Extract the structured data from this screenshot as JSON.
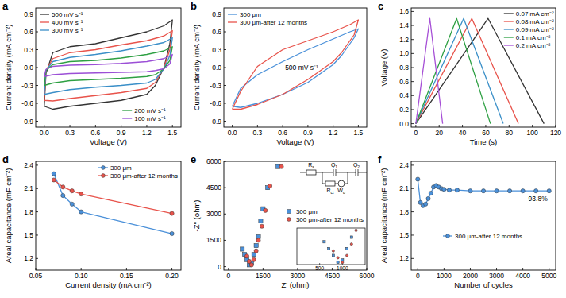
{
  "chart_data": [
    {
      "type": "line",
      "panel": "a",
      "xlabel": "Voltage (V)",
      "ylabel": "Current density (mA cm⁻²)",
      "xlim": [
        -0.1,
        1.6
      ],
      "ylim": [
        -1.0,
        1.0
      ],
      "xticks": [
        {
          "value": 0,
          "label": "0.0"
        },
        0.3,
        0.6,
        0.9,
        1.2,
        1.5
      ],
      "yticks": [
        -0.9,
        -0.6,
        -0.3,
        {
          "value": 0,
          "label": "0.0"
        },
        0.3,
        0.6,
        0.9
      ],
      "legend": "upper left",
      "series": [
        {
          "name": "500 mV s⁻¹",
          "color": "#333333",
          "x": [
            0,
            0.02,
            0.1,
            0.3,
            0.6,
            0.9,
            1.2,
            1.4,
            1.5,
            1.47,
            1.4,
            1.3,
            1.2,
            0.9,
            0.6,
            0.3,
            0.1,
            0
          ],
          "values": [
            -0.65,
            -0.1,
            0.25,
            0.35,
            0.4,
            0.5,
            0.6,
            0.7,
            0.8,
            0.4,
            0.0,
            -0.3,
            -0.45,
            -0.55,
            -0.6,
            -0.65,
            -0.7,
            -0.65
          ]
        },
        {
          "name": "400 mV s⁻¹",
          "color": "#e8534b",
          "x": [
            0,
            0.02,
            0.1,
            0.3,
            0.6,
            0.9,
            1.2,
            1.4,
            1.5,
            1.47,
            1.4,
            1.3,
            1.2,
            0.9,
            0.6,
            0.3,
            0.1,
            0
          ],
          "values": [
            -0.55,
            -0.05,
            0.15,
            0.25,
            0.3,
            0.38,
            0.45,
            0.53,
            0.62,
            0.3,
            0.0,
            -0.25,
            -0.35,
            -0.42,
            -0.47,
            -0.52,
            -0.56,
            -0.55
          ]
        },
        {
          "name": "300 mV s⁻¹",
          "color": "#3a8fc8",
          "x": [
            0,
            0.02,
            0.1,
            0.3,
            0.6,
            0.9,
            1.2,
            1.4,
            1.5,
            1.47,
            1.4,
            1.3,
            1.2,
            0.9,
            0.6,
            0.3,
            0.1,
            0
          ],
          "values": [
            -0.45,
            -0.05,
            0.1,
            0.17,
            0.22,
            0.28,
            0.36,
            0.42,
            0.5,
            0.2,
            -0.02,
            -0.2,
            -0.26,
            -0.3,
            -0.33,
            -0.37,
            -0.42,
            -0.45
          ]
        },
        {
          "name": "200 mV s⁻¹",
          "color": "#2ea043",
          "x": [
            0,
            0.02,
            0.1,
            0.3,
            0.6,
            0.9,
            1.2,
            1.4,
            1.5,
            1.47,
            1.4,
            1.3,
            1.2,
            0.9,
            0.6,
            0.3,
            0.1,
            0
          ],
          "values": [
            -0.3,
            -0.05,
            0.05,
            0.1,
            0.12,
            0.16,
            0.22,
            0.28,
            0.35,
            0.12,
            -0.02,
            -0.12,
            -0.15,
            -0.18,
            -0.2,
            -0.22,
            -0.26,
            -0.3
          ]
        },
        {
          "name": "100 mV s⁻¹",
          "color": "#9b4fd6",
          "x": [
            0,
            0.02,
            0.1,
            0.3,
            0.6,
            0.9,
            1.2,
            1.4,
            1.5,
            1.47,
            1.4,
            1.3,
            1.2,
            0.9,
            0.6,
            0.3,
            0.1,
            0
          ],
          "values": [
            -0.15,
            -0.03,
            0.02,
            0.04,
            0.05,
            0.07,
            0.1,
            0.15,
            0.22,
            0.06,
            -0.02,
            -0.05,
            -0.07,
            -0.08,
            -0.09,
            -0.1,
            -0.12,
            -0.15
          ]
        }
      ]
    },
    {
      "type": "line",
      "panel": "b",
      "xlabel": "Voltage (V)",
      "ylabel": "Current density (mA cm⁻²)",
      "xlim": [
        -0.1,
        1.6
      ],
      "ylim": [
        -1.0,
        1.0
      ],
      "xticks": [
        {
          "value": 0,
          "label": "0.0"
        },
        0.3,
        0.6,
        0.9,
        1.2,
        1.5
      ],
      "yticks": [
        -0.9,
        -0.6,
        -0.3,
        {
          "value": 0,
          "label": "0.0"
        },
        0.3,
        0.6,
        0.9
      ],
      "legend": "upper left",
      "annotation": "500 mV s⁻¹",
      "series": [
        {
          "name": "300 μm",
          "color": "#4a90d9",
          "x": [
            0,
            0.1,
            0.3,
            0.6,
            0.9,
            1.2,
            1.4,
            1.5,
            1.45,
            1.3,
            1.2,
            0.9,
            0.6,
            0.3,
            0.1,
            0
          ],
          "values": [
            -0.65,
            -0.35,
            -0.12,
            0.1,
            0.3,
            0.48,
            0.6,
            0.65,
            0.5,
            0.2,
            0.05,
            -0.25,
            -0.45,
            -0.6,
            -0.67,
            -0.65
          ]
        },
        {
          "name": "300 μm-after 12 months",
          "color": "#e8534b",
          "x": [
            0,
            0.1,
            0.3,
            0.6,
            0.9,
            1.2,
            1.4,
            1.5,
            1.45,
            1.3,
            1.2,
            0.9,
            0.6,
            0.3,
            0.1,
            0
          ],
          "values": [
            -0.7,
            -0.4,
            0.02,
            0.3,
            0.45,
            0.6,
            0.72,
            0.8,
            0.55,
            0.25,
            0.1,
            -0.2,
            -0.45,
            -0.62,
            -0.7,
            -0.7
          ]
        }
      ]
    },
    {
      "type": "line",
      "panel": "c",
      "xlabel": "Time (s)",
      "ylabel": "Voltage (V)",
      "xlim": [
        -4,
        120
      ],
      "ylim": [
        -0.05,
        1.65
      ],
      "xticks": [
        0,
        20,
        40,
        60,
        80,
        100,
        120
      ],
      "yticks": [
        {
          "value": 0,
          "label": "0.0"
        },
        0.2,
        0.4,
        0.6,
        0.8,
        {
          "value": 1,
          "label": "1.0"
        },
        1.2,
        1.4,
        1.6
      ],
      "legend": "upper right",
      "series": [
        {
          "name": "0.07 mA cm⁻²",
          "color": "#333333",
          "x": [
            0,
            62,
            110
          ],
          "values": [
            0,
            1.5,
            0
          ]
        },
        {
          "name": "0.08 mA cm⁻²",
          "color": "#e8534b",
          "x": [
            0,
            48,
            88
          ],
          "values": [
            0,
            1.5,
            0
          ]
        },
        {
          "name": "0.09 mA cm⁻²",
          "color": "#3a8fc8",
          "x": [
            0,
            41,
            75
          ],
          "values": [
            0,
            1.5,
            0
          ]
        },
        {
          "name": "0.1 mA cm⁻²",
          "color": "#2ea043",
          "x": [
            0,
            35,
            64
          ],
          "values": [
            0,
            1.5,
            0
          ]
        },
        {
          "name": "0.2 mA cm⁻²",
          "color": "#a64fd6",
          "x": [
            0,
            12,
            23
          ],
          "values": [
            0,
            1.5,
            0
          ]
        }
      ]
    },
    {
      "type": "line",
      "panel": "d",
      "xlabel": "Current density (mA cm⁻²)",
      "ylabel": "Areal capacitance (mF cm⁻²)",
      "xlim": [
        0.05,
        0.21
      ],
      "ylim": [
        1.05,
        2.45
      ],
      "xticks": [
        0.05,
        {
          "value": 0.1,
          "label": "0.10"
        },
        0.15,
        {
          "value": 0.2,
          "label": "0.20"
        }
      ],
      "yticks": [
        1.2,
        1.5,
        1.8,
        2.1,
        2.4
      ],
      "legend": "upper right",
      "series": [
        {
          "name": "300 μm",
          "color": "#4a90d9",
          "marker": "circle",
          "x": [
            0.07,
            0.08,
            0.09,
            0.1,
            0.2
          ],
          "values": [
            2.29,
            2.01,
            1.9,
            1.8,
            1.52
          ]
        },
        {
          "name": "300 μm-after 12 months",
          "color": "#e8534b",
          "marker": "circle",
          "x": [
            0.07,
            0.08,
            0.09,
            0.1,
            0.2
          ],
          "values": [
            2.21,
            2.12,
            2.07,
            2.03,
            1.78
          ]
        }
      ]
    },
    {
      "type": "scatter",
      "panel": "e",
      "xlabel": "Z' (ohm)",
      "ylabel": "-Z'' (ohm)",
      "xlim": [
        -200,
        6000
      ],
      "ylim": [
        -200,
        6000
      ],
      "xticks": [
        0,
        1500,
        3000,
        4500,
        6000
      ],
      "yticks": [
        0,
        1500,
        3000,
        4500,
        6000
      ],
      "legend": "center right",
      "circuit": [
        "Rs",
        "Q1",
        "Q2",
        "Rct",
        "Wo"
      ],
      "inset": {
        "xlim": [
          0,
          1500
        ],
        "ylim": [
          0,
          1600
        ],
        "xticks": [
          500,
          1000
        ]
      },
      "series": [
        {
          "name": "300 μm",
          "color": "#4a90d9",
          "marker": "square",
          "x": [
            600,
            700,
            800,
            900,
            1000,
            1100,
            1200,
            1300,
            1400,
            1500,
            1700,
            2150
          ],
          "values": [
            1000,
            700,
            400,
            100,
            200,
            700,
            1200,
            1700,
            2600,
            3300,
            4500,
            5700
          ]
        },
        {
          "name": "300 μm-after 12 months",
          "color": "#e8534b",
          "marker": "circle",
          "x": [
            800,
            900,
            1000,
            1100,
            1200,
            1300,
            1450,
            1600,
            1800,
            2300
          ],
          "values": [
            600,
            300,
            100,
            400,
            900,
            1500,
            2300,
            3200,
            4600,
            5700
          ]
        }
      ]
    },
    {
      "type": "line",
      "panel": "f",
      "xlabel": "Number of cycles",
      "ylabel": "Areal capacitance (mF cm⁻²)",
      "xlim": [
        -250,
        5250
      ],
      "ylim": [
        1.05,
        2.45
      ],
      "xticks": [
        0,
        1000,
        2000,
        3000,
        4000,
        5000
      ],
      "yticks": [
        1.2,
        1.5,
        1.8,
        2.1,
        2.4
      ],
      "legend": "lower left",
      "annotation": "93.8%",
      "series": [
        {
          "name": "300 μm-after 12 months",
          "color": "#4a90d9",
          "marker": "circle",
          "x": [
            0,
            100,
            200,
            300,
            400,
            500,
            600,
            700,
            800,
            900,
            1000,
            1200,
            1500,
            2000,
            2500,
            3000,
            3500,
            4000,
            4500,
            5000
          ],
          "values": [
            2.22,
            1.92,
            1.88,
            1.9,
            1.97,
            2.04,
            2.12,
            2.14,
            2.12,
            2.1,
            2.09,
            2.08,
            2.08,
            2.07,
            2.07,
            2.07,
            2.07,
            2.07,
            2.07,
            2.07
          ]
        }
      ]
    }
  ]
}
